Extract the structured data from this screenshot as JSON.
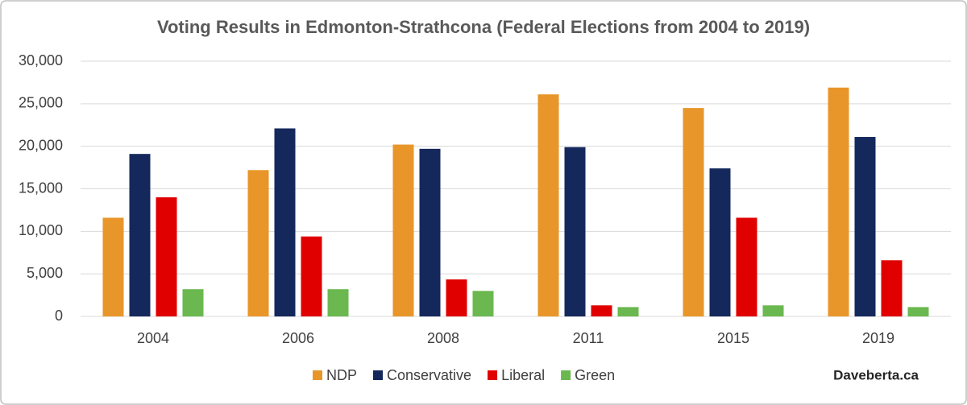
{
  "chart_data": {
    "type": "bar",
    "title": "Voting Results in Edmonton-Strathcona (Federal Elections from 2004 to 2019)",
    "categories": [
      "2004",
      "2006",
      "2008",
      "2011",
      "2015",
      "2019"
    ],
    "series": [
      {
        "name": "NDP",
        "color": "#e8962a",
        "values": [
          11600,
          17200,
          20200,
          26100,
          24500,
          26900
        ]
      },
      {
        "name": "Conservative",
        "color": "#14285c",
        "values": [
          19100,
          22100,
          19700,
          19900,
          17400,
          21100
        ]
      },
      {
        "name": "Liberal",
        "color": "#e00000",
        "values": [
          14000,
          9400,
          4350,
          1300,
          11600,
          6600
        ]
      },
      {
        "name": "Green",
        "color": "#6ab84f",
        "values": [
          3200,
          3200,
          3000,
          1100,
          1300,
          1100
        ]
      }
    ],
    "ylim": [
      0,
      30000
    ],
    "yticks": [
      0,
      {
        "value": 5000,
        "label": "5,000"
      },
      {
        "value": 10000,
        "label": "10,000"
      },
      {
        "value": 15000,
        "label": "15,000"
      },
      {
        "value": 20000,
        "label": "20,000"
      },
      {
        "value": 25000,
        "label": "25,000"
      },
      {
        "value": 30000,
        "label": "30,000"
      }
    ],
    "grid": true,
    "legend": "bottom",
    "credit": "Daveberta.ca"
  }
}
